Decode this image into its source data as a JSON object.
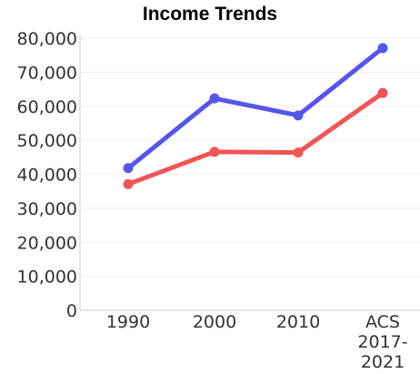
{
  "chart_data": {
    "type": "line",
    "title": "Income Trends",
    "categories": [
      "1990",
      "2000",
      "2010",
      "ACS 2017-2021"
    ],
    "category_label_lines": [
      [
        "1990"
      ],
      [
        "2000"
      ],
      [
        "2010"
      ],
      [
        "ACS",
        "2017-",
        "2021"
      ]
    ],
    "series": [
      {
        "color": "#5555ee",
        "values": [
          41800,
          62300,
          57300,
          77100
        ]
      },
      {
        "color": "#f25555",
        "values": [
          37100,
          46600,
          46400,
          63900
        ]
      }
    ],
    "ylim": [
      0,
      80000
    ],
    "yticks": [
      0,
      10000,
      20000,
      30000,
      40000,
      50000,
      60000,
      70000,
      80000
    ],
    "ytick_labels": [
      "0",
      "10,000",
      "20,000",
      "30,000",
      "40,000",
      "50,000",
      "60,000",
      "70,000",
      "80,000"
    ],
    "grid": true
  }
}
